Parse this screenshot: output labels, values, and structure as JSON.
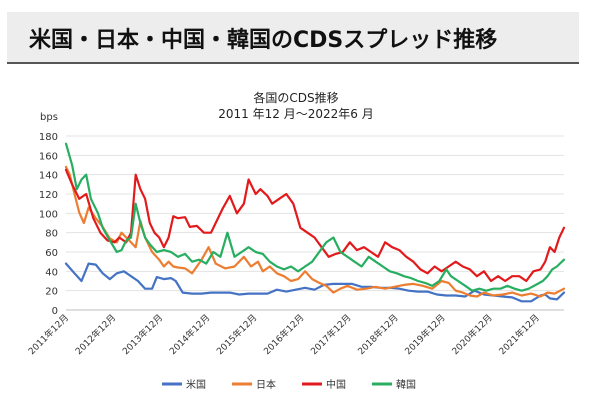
{
  "page": {
    "heading": "米国・日本・中国・韓国のCDSスプレッド推移"
  },
  "chart_data": {
    "type": "line",
    "title": "各国のCDS推移",
    "subtitle": "2011 年12 月～2022年6 月",
    "ylabel": "bps",
    "xlabel": "",
    "ylim": [
      0,
      180
    ],
    "yticks": [
      0,
      20,
      40,
      60,
      80,
      100,
      120,
      140,
      160,
      180
    ],
    "xlim": [
      2011.92,
      2022.5
    ],
    "xticks": [
      {
        "x": 2011.92,
        "label": "2011年12月"
      },
      {
        "x": 2012.92,
        "label": "2012年12月"
      },
      {
        "x": 2013.92,
        "label": "2013年12月"
      },
      {
        "x": 2014.92,
        "label": "2014年12月"
      },
      {
        "x": 2015.92,
        "label": "2015年12月"
      },
      {
        "x": 2016.92,
        "label": "2016年12月"
      },
      {
        "x": 2017.92,
        "label": "2017年12月"
      },
      {
        "x": 2018.92,
        "label": "2018年12月"
      },
      {
        "x": 2019.92,
        "label": "2019年12月"
      },
      {
        "x": 2020.92,
        "label": "2020年12月"
      },
      {
        "x": 2021.92,
        "label": "2021年12月"
      }
    ],
    "grid": true,
    "legend_position": "bottom",
    "series": [
      {
        "name": "米国",
        "color": "#4472c4",
        "points": [
          [
            2011.92,
            48
          ],
          [
            2012.1,
            38
          ],
          [
            2012.25,
            30
          ],
          [
            2012.4,
            48
          ],
          [
            2012.55,
            47
          ],
          [
            2012.7,
            38
          ],
          [
            2012.85,
            32
          ],
          [
            2013.0,
            38
          ],
          [
            2013.15,
            40
          ],
          [
            2013.3,
            35
          ],
          [
            2013.45,
            30
          ],
          [
            2013.6,
            22
          ],
          [
            2013.75,
            22
          ],
          [
            2013.85,
            34
          ],
          [
            2014.0,
            32
          ],
          [
            2014.15,
            33
          ],
          [
            2014.25,
            30
          ],
          [
            2014.4,
            18
          ],
          [
            2014.6,
            17
          ],
          [
            2014.8,
            17
          ],
          [
            2015.0,
            18
          ],
          [
            2015.2,
            18
          ],
          [
            2015.4,
            18
          ],
          [
            2015.6,
            16
          ],
          [
            2015.8,
            17
          ],
          [
            2016.0,
            17
          ],
          [
            2016.2,
            17
          ],
          [
            2016.4,
            21
          ],
          [
            2016.6,
            19
          ],
          [
            2016.8,
            21
          ],
          [
            2017.0,
            23
          ],
          [
            2017.2,
            21
          ],
          [
            2017.4,
            26
          ],
          [
            2017.6,
            27
          ],
          [
            2017.8,
            27
          ],
          [
            2018.0,
            27
          ],
          [
            2018.2,
            24
          ],
          [
            2018.4,
            24
          ],
          [
            2018.6,
            23
          ],
          [
            2018.8,
            23
          ],
          [
            2019.0,
            22
          ],
          [
            2019.2,
            20
          ],
          [
            2019.4,
            19
          ],
          [
            2019.6,
            19
          ],
          [
            2019.8,
            16
          ],
          [
            2020.0,
            15
          ],
          [
            2020.2,
            15
          ],
          [
            2020.4,
            14
          ],
          [
            2020.6,
            20
          ],
          [
            2020.8,
            16
          ],
          [
            2021.0,
            15
          ],
          [
            2021.2,
            14
          ],
          [
            2021.4,
            13
          ],
          [
            2021.6,
            9
          ],
          [
            2021.8,
            9
          ],
          [
            2022.0,
            15
          ],
          [
            2022.1,
            16
          ],
          [
            2022.2,
            12
          ],
          [
            2022.35,
            11
          ],
          [
            2022.5,
            18
          ]
        ]
      },
      {
        "name": "日本",
        "color": "#ed7d31",
        "points": [
          [
            2011.92,
            148
          ],
          [
            2012.0,
            140
          ],
          [
            2012.1,
            120
          ],
          [
            2012.2,
            101
          ],
          [
            2012.3,
            90
          ],
          [
            2012.4,
            106
          ],
          [
            2012.55,
            95
          ],
          [
            2012.7,
            86
          ],
          [
            2012.85,
            74
          ],
          [
            2013.0,
            70
          ],
          [
            2013.1,
            80
          ],
          [
            2013.2,
            75
          ],
          [
            2013.3,
            70
          ],
          [
            2013.4,
            65
          ],
          [
            2013.5,
            92
          ],
          [
            2013.6,
            75
          ],
          [
            2013.75,
            60
          ],
          [
            2013.9,
            52
          ],
          [
            2014.0,
            45
          ],
          [
            2014.1,
            50
          ],
          [
            2014.2,
            45
          ],
          [
            2014.3,
            44
          ],
          [
            2014.45,
            43
          ],
          [
            2014.6,
            38
          ],
          [
            2014.8,
            52
          ],
          [
            2014.95,
            65
          ],
          [
            2015.1,
            48
          ],
          [
            2015.3,
            43
          ],
          [
            2015.5,
            45
          ],
          [
            2015.7,
            55
          ],
          [
            2015.85,
            45
          ],
          [
            2016.0,
            50
          ],
          [
            2016.1,
            40
          ],
          [
            2016.25,
            45
          ],
          [
            2016.4,
            38
          ],
          [
            2016.55,
            35
          ],
          [
            2016.7,
            30
          ],
          [
            2016.85,
            32
          ],
          [
            2017.0,
            40
          ],
          [
            2017.15,
            32
          ],
          [
            2017.3,
            28
          ],
          [
            2017.45,
            25
          ],
          [
            2017.6,
            18
          ],
          [
            2017.75,
            22
          ],
          [
            2017.9,
            25
          ],
          [
            2018.1,
            21
          ],
          [
            2018.3,
            22
          ],
          [
            2018.5,
            24
          ],
          [
            2018.7,
            22
          ],
          [
            2018.9,
            24
          ],
          [
            2019.1,
            26
          ],
          [
            2019.3,
            27
          ],
          [
            2019.5,
            25
          ],
          [
            2019.7,
            22
          ],
          [
            2019.9,
            30
          ],
          [
            2020.05,
            28
          ],
          [
            2020.2,
            20
          ],
          [
            2020.35,
            18
          ],
          [
            2020.5,
            15
          ],
          [
            2020.65,
            14
          ],
          [
            2020.8,
            18
          ],
          [
            2021.0,
            15
          ],
          [
            2021.2,
            16
          ],
          [
            2021.4,
            18
          ],
          [
            2021.6,
            15
          ],
          [
            2021.8,
            17
          ],
          [
            2022.0,
            14
          ],
          [
            2022.15,
            18
          ],
          [
            2022.3,
            17
          ],
          [
            2022.5,
            22
          ]
        ]
      },
      {
        "name": "中国",
        "color": "#e31a1c",
        "points": [
          [
            2011.92,
            145
          ],
          [
            2012.05,
            130
          ],
          [
            2012.2,
            115
          ],
          [
            2012.35,
            120
          ],
          [
            2012.5,
            95
          ],
          [
            2012.65,
            80
          ],
          [
            2012.8,
            72
          ],
          [
            2012.95,
            70
          ],
          [
            2013.05,
            75
          ],
          [
            2013.2,
            70
          ],
          [
            2013.3,
            80
          ],
          [
            2013.4,
            140
          ],
          [
            2013.5,
            125
          ],
          [
            2013.6,
            115
          ],
          [
            2013.7,
            90
          ],
          [
            2013.8,
            80
          ],
          [
            2013.9,
            75
          ],
          [
            2014.0,
            65
          ],
          [
            2014.1,
            75
          ],
          [
            2014.2,
            97
          ],
          [
            2014.3,
            95
          ],
          [
            2014.45,
            96
          ],
          [
            2014.55,
            86
          ],
          [
            2014.7,
            87
          ],
          [
            2014.85,
            80
          ],
          [
            2015.0,
            80
          ],
          [
            2015.1,
            90
          ],
          [
            2015.25,
            105
          ],
          [
            2015.4,
            118
          ],
          [
            2015.55,
            100
          ],
          [
            2015.7,
            110
          ],
          [
            2015.8,
            135
          ],
          [
            2015.95,
            120
          ],
          [
            2016.05,
            125
          ],
          [
            2016.2,
            118
          ],
          [
            2016.3,
            110
          ],
          [
            2016.45,
            115
          ],
          [
            2016.6,
            120
          ],
          [
            2016.75,
            110
          ],
          [
            2016.9,
            85
          ],
          [
            2017.05,
            80
          ],
          [
            2017.2,
            75
          ],
          [
            2017.35,
            65
          ],
          [
            2017.5,
            55
          ],
          [
            2017.65,
            58
          ],
          [
            2017.8,
            60
          ],
          [
            2017.95,
            70
          ],
          [
            2018.1,
            62
          ],
          [
            2018.25,
            65
          ],
          [
            2018.4,
            60
          ],
          [
            2018.55,
            55
          ],
          [
            2018.7,
            70
          ],
          [
            2018.85,
            65
          ],
          [
            2019.0,
            62
          ],
          [
            2019.15,
            55
          ],
          [
            2019.3,
            50
          ],
          [
            2019.45,
            42
          ],
          [
            2019.6,
            38
          ],
          [
            2019.75,
            45
          ],
          [
            2019.9,
            40
          ],
          [
            2020.05,
            45
          ],
          [
            2020.2,
            50
          ],
          [
            2020.35,
            45
          ],
          [
            2020.5,
            42
          ],
          [
            2020.65,
            35
          ],
          [
            2020.8,
            40
          ],
          [
            2020.95,
            30
          ],
          [
            2021.1,
            35
          ],
          [
            2021.25,
            30
          ],
          [
            2021.4,
            35
          ],
          [
            2021.55,
            35
          ],
          [
            2021.7,
            30
          ],
          [
            2021.85,
            40
          ],
          [
            2022.0,
            42
          ],
          [
            2022.1,
            50
          ],
          [
            2022.2,
            65
          ],
          [
            2022.3,
            60
          ],
          [
            2022.4,
            75
          ],
          [
            2022.5,
            85
          ]
        ]
      },
      {
        "name": "韓国",
        "color": "#27ae60",
        "points": [
          [
            2011.92,
            172
          ],
          [
            2012.05,
            150
          ],
          [
            2012.15,
            125
          ],
          [
            2012.25,
            135
          ],
          [
            2012.35,
            140
          ],
          [
            2012.45,
            115
          ],
          [
            2012.6,
            100
          ],
          [
            2012.7,
            85
          ],
          [
            2012.85,
            72
          ],
          [
            2013.0,
            60
          ],
          [
            2013.1,
            62
          ],
          [
            2013.2,
            72
          ],
          [
            2013.3,
            75
          ],
          [
            2013.4,
            110
          ],
          [
            2013.5,
            90
          ],
          [
            2013.6,
            75
          ],
          [
            2013.7,
            68
          ],
          [
            2013.85,
            60
          ],
          [
            2014.0,
            62
          ],
          [
            2014.15,
            60
          ],
          [
            2014.3,
            55
          ],
          [
            2014.45,
            58
          ],
          [
            2014.6,
            50
          ],
          [
            2014.75,
            52
          ],
          [
            2014.9,
            48
          ],
          [
            2015.05,
            60
          ],
          [
            2015.2,
            55
          ],
          [
            2015.35,
            80
          ],
          [
            2015.5,
            55
          ],
          [
            2015.65,
            60
          ],
          [
            2015.8,
            65
          ],
          [
            2015.95,
            60
          ],
          [
            2016.1,
            58
          ],
          [
            2016.25,
            50
          ],
          [
            2016.4,
            45
          ],
          [
            2016.55,
            42
          ],
          [
            2016.7,
            45
          ],
          [
            2016.85,
            40
          ],
          [
            2017.0,
            45
          ],
          [
            2017.15,
            50
          ],
          [
            2017.3,
            60
          ],
          [
            2017.45,
            70
          ],
          [
            2017.6,
            75
          ],
          [
            2017.75,
            60
          ],
          [
            2017.9,
            55
          ],
          [
            2018.05,
            50
          ],
          [
            2018.2,
            45
          ],
          [
            2018.35,
            55
          ],
          [
            2018.5,
            50
          ],
          [
            2018.65,
            45
          ],
          [
            2018.8,
            40
          ],
          [
            2018.95,
            38
          ],
          [
            2019.1,
            35
          ],
          [
            2019.25,
            33
          ],
          [
            2019.4,
            30
          ],
          [
            2019.55,
            28
          ],
          [
            2019.7,
            25
          ],
          [
            2019.85,
            30
          ],
          [
            2020.0,
            42
          ],
          [
            2020.1,
            35
          ],
          [
            2020.25,
            30
          ],
          [
            2020.4,
            25
          ],
          [
            2020.55,
            20
          ],
          [
            2020.7,
            22
          ],
          [
            2020.85,
            20
          ],
          [
            2021.0,
            22
          ],
          [
            2021.15,
            22
          ],
          [
            2021.3,
            25
          ],
          [
            2021.45,
            22
          ],
          [
            2021.6,
            20
          ],
          [
            2021.75,
            22
          ],
          [
            2021.9,
            26
          ],
          [
            2022.05,
            30
          ],
          [
            2022.15,
            35
          ],
          [
            2022.25,
            42
          ],
          [
            2022.35,
            45
          ],
          [
            2022.5,
            52
          ]
        ]
      }
    ]
  }
}
